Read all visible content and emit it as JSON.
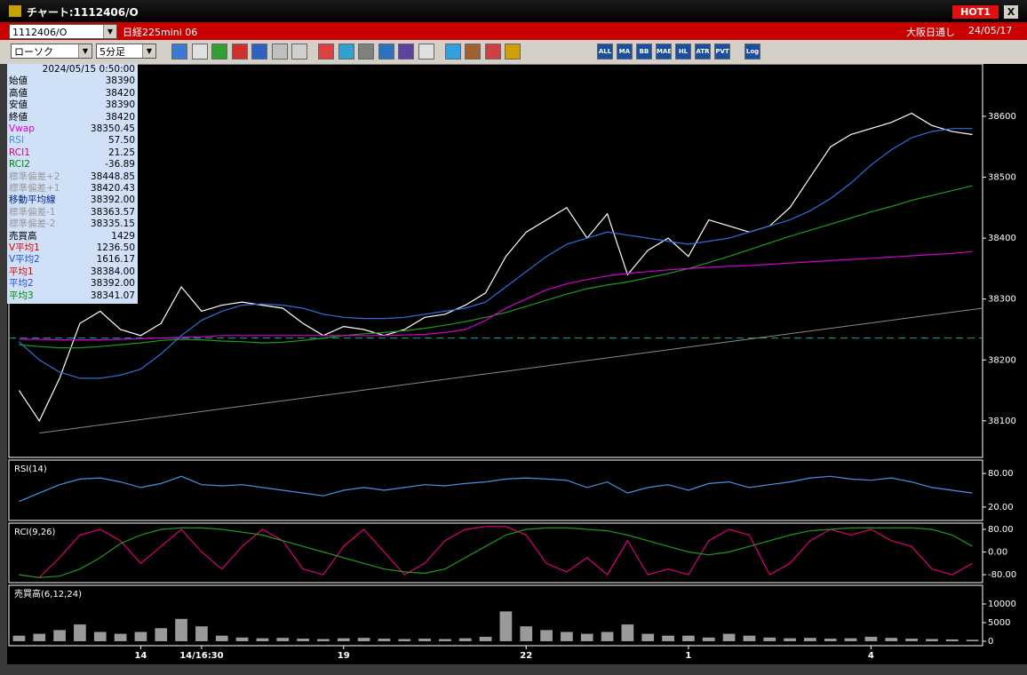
{
  "window": {
    "title": "チャート:1112406/O",
    "hot": "HOT1",
    "close": "X"
  },
  "header": {
    "symbol": "1112406/O",
    "name": "日経225mini 06",
    "market": "大阪日通し",
    "date": "24/05/17"
  },
  "toolbar": {
    "chart_kind": "ローソク",
    "period": "5分足",
    "icon_labels": [
      "ALL",
      "MA",
      "BB",
      "MAE",
      "HL",
      "ATR",
      "PVT",
      "Log"
    ]
  },
  "info": {
    "time": "2024/05/15 0:50:00",
    "rows": [
      {
        "label": "始値",
        "value": "38390",
        "color": "#000000"
      },
      {
        "label": "高値",
        "value": "38420",
        "color": "#000000"
      },
      {
        "label": "安値",
        "value": "38390",
        "color": "#000000"
      },
      {
        "label": "終値",
        "value": "38420",
        "color": "#000000"
      },
      {
        "label": "Vwap",
        "value": "38350.45",
        "color": "#d400d4"
      },
      {
        "label": "RSI",
        "value": "57.50",
        "color": "#4a90e2"
      },
      {
        "label": "RCI1",
        "value": "21.25",
        "color": "#e0007a"
      },
      {
        "label": "RCI2",
        "value": "-36.89",
        "color": "#008a00"
      },
      {
        "label": "標準偏差+2",
        "value": "38448.85",
        "color": "#9a9a9a"
      },
      {
        "label": "標準偏差+1",
        "value": "38420.43",
        "color": "#9a9a9a"
      },
      {
        "label": "移動平均線",
        "value": "38392.00",
        "color": "#00208a"
      },
      {
        "label": "標準偏差-1",
        "value": "38363.57",
        "color": "#9a9a9a"
      },
      {
        "label": "標準偏差-2",
        "value": "38335.15",
        "color": "#9a9a9a"
      },
      {
        "label": "売買高",
        "value": "1429",
        "color": "#000000"
      },
      {
        "label": "V平均1",
        "value": "1236.50",
        "color": "#e00000"
      },
      {
        "label": "V平均2",
        "value": "1616.17",
        "color": "#2050e0"
      },
      {
        "label": "平均1",
        "value": "38384.00",
        "color": "#e00000"
      },
      {
        "label": "平均2",
        "value": "38392.00",
        "color": "#2050e0"
      },
      {
        "label": "平均3",
        "value": "38341.07",
        "color": "#008a00"
      }
    ]
  },
  "chart_data": [
    {
      "type": "line",
      "categories": [
        null,
        null,
        null,
        null,
        null,
        null,
        "14",
        null,
        null,
        "14/16:30",
        null,
        null,
        null,
        null,
        null,
        null,
        "19",
        null,
        null,
        null,
        null,
        null,
        null,
        null,
        null,
        "22",
        null,
        null,
        null,
        null,
        null,
        null,
        null,
        "1",
        null,
        null,
        null,
        null,
        null,
        null,
        null,
        null,
        "4",
        null,
        null,
        null,
        null,
        null
      ],
      "series": [
        {
          "color": "#ffffff",
          "values": [
            38150,
            38100,
            38170,
            38260,
            38280,
            38250,
            38240,
            38260,
            38320,
            38280,
            38290,
            38295,
            38290,
            38285,
            38260,
            38240,
            38255,
            38250,
            38240,
            38250,
            38270,
            38275,
            38290,
            38310,
            38370,
            38410,
            38430,
            38450,
            38400,
            38440,
            38340,
            38380,
            38400,
            38370,
            38430,
            38420,
            38410,
            38420,
            38450,
            38500,
            38550,
            38570,
            38580,
            38590,
            38605,
            38585,
            38575,
            38570
          ]
        },
        {
          "color": "#2f6fe0",
          "values": [
            38230,
            38200,
            38180,
            38170,
            38170,
            38175,
            38185,
            38210,
            38240,
            38265,
            38280,
            38290,
            38292,
            38290,
            38285,
            38275,
            38270,
            38268,
            38268,
            38270,
            38275,
            38280,
            38285,
            38295,
            38320,
            38345,
            38370,
            38390,
            38400,
            38410,
            38405,
            38400,
            38395,
            38390,
            38395,
            38400,
            38410,
            38420,
            38430,
            38445,
            38465,
            38490,
            38520,
            38545,
            38565,
            38575,
            38580,
            38580
          ]
        },
        {
          "color": "#1f9a1f",
          "values": [
            38225,
            38222,
            38220,
            38220,
            38222,
            38225,
            38228,
            38232,
            38234,
            38233,
            38231,
            38230,
            38228,
            38229,
            38232,
            38236,
            38240,
            38243,
            38245,
            38248,
            38252,
            38257,
            38263,
            38270,
            38278,
            38288,
            38298,
            38308,
            38317,
            38323,
            38328,
            38335,
            38342,
            38350,
            38360,
            38370,
            38381,
            38392,
            38403,
            38413,
            38423,
            38433,
            38443,
            38452,
            38462,
            38470,
            38478,
            38486
          ]
        },
        {
          "color": "#d400d4",
          "values": [
            38234,
            38234,
            38233,
            38233,
            38233,
            38234,
            38235,
            38236,
            38237,
            38238,
            38240,
            38240,
            38240,
            38240,
            38240,
            38240,
            38240,
            38240,
            38240,
            38241,
            38242,
            38245,
            38250,
            38265,
            38285,
            38300,
            38315,
            38325,
            38332,
            38338,
            38342,
            38345,
            38348,
            38350,
            38352,
            38354,
            38355,
            38357,
            38359,
            38361,
            38363,
            38365,
            38367,
            38369,
            38371,
            38373,
            38375,
            38378
          ]
        }
      ],
      "levels": [
        {
          "value": 38236,
          "color": "#1aa0a0",
          "dashed": true
        }
      ],
      "trend": {
        "values": [
          38080,
          38285
        ],
        "color": "#8a8a8a"
      },
      "ylim": [
        38040,
        38686
      ],
      "yticks": [
        38100,
        38200,
        38300,
        38400,
        38500,
        38600
      ]
    },
    {
      "type": "line",
      "title": "RSI(14)",
      "series": [
        {
          "color": "#4a90e2",
          "values": [
            30,
            45,
            60,
            70,
            72,
            65,
            55,
            62,
            75,
            60,
            58,
            60,
            55,
            50,
            45,
            40,
            50,
            55,
            50,
            55,
            60,
            58,
            62,
            65,
            70,
            72,
            70,
            68,
            55,
            65,
            45,
            55,
            60,
            50,
            62,
            65,
            55,
            60,
            65,
            72,
            75,
            70,
            68,
            72,
            65,
            55,
            50,
            45
          ]
        }
      ],
      "ylim": [
        -4,
        104
      ],
      "yticks": [
        {
          "value": 20,
          "label": "20.00"
        },
        {
          "value": 80,
          "label": "80.00"
        }
      ]
    },
    {
      "type": "line",
      "title": "RCI(9,26)",
      "series": [
        {
          "color": "#e0007a",
          "values": [
            -80,
            -90,
            -20,
            60,
            80,
            40,
            -40,
            20,
            80,
            0,
            -60,
            20,
            80,
            40,
            -60,
            -80,
            20,
            80,
            0,
            -80,
            -40,
            40,
            80,
            90,
            90,
            60,
            -40,
            -70,
            -20,
            -80,
            40,
            -80,
            -60,
            -80,
            40,
            80,
            60,
            -80,
            -40,
            40,
            80,
            60,
            80,
            40,
            20,
            -60,
            -80,
            -40
          ]
        },
        {
          "color": "#1f9a1f",
          "values": [
            -80,
            -90,
            -85,
            -60,
            -20,
            30,
            60,
            80,
            85,
            85,
            80,
            70,
            60,
            40,
            20,
            0,
            -20,
            -40,
            -60,
            -70,
            -75,
            -60,
            -20,
            20,
            60,
            80,
            85,
            85,
            80,
            75,
            60,
            40,
            20,
            0,
            -10,
            0,
            20,
            40,
            60,
            75,
            80,
            85,
            85,
            85,
            85,
            80,
            60,
            20
          ]
        }
      ],
      "ylim": [
        -108,
        102
      ],
      "yticks": [
        {
          "value": -80,
          "label": "-80.00"
        },
        {
          "value": 0,
          "label": "0.00"
        },
        {
          "value": 80,
          "label": "80.00"
        }
      ]
    },
    {
      "type": "bar",
      "title": "売買高(6,12,24)",
      "series": [
        {
          "color": "#9a9a9a",
          "values": [
            1500,
            2000,
            3000,
            4500,
            2500,
            2000,
            2500,
            3500,
            6000,
            4000,
            1500,
            1000,
            800,
            900,
            700,
            600,
            800,
            900,
            700,
            600,
            700,
            600,
            800,
            1200,
            8000,
            4000,
            3000,
            2500,
            2000,
            2500,
            4500,
            2000,
            1500,
            1500,
            1000,
            2000,
            1500,
            1000,
            800,
            900,
            700,
            800,
            1200,
            900,
            700,
            600,
            500,
            400
          ]
        }
      ],
      "ylim": [
        -1190,
        15000
      ],
      "yticks": [
        0,
        5000,
        10000
      ]
    }
  ]
}
